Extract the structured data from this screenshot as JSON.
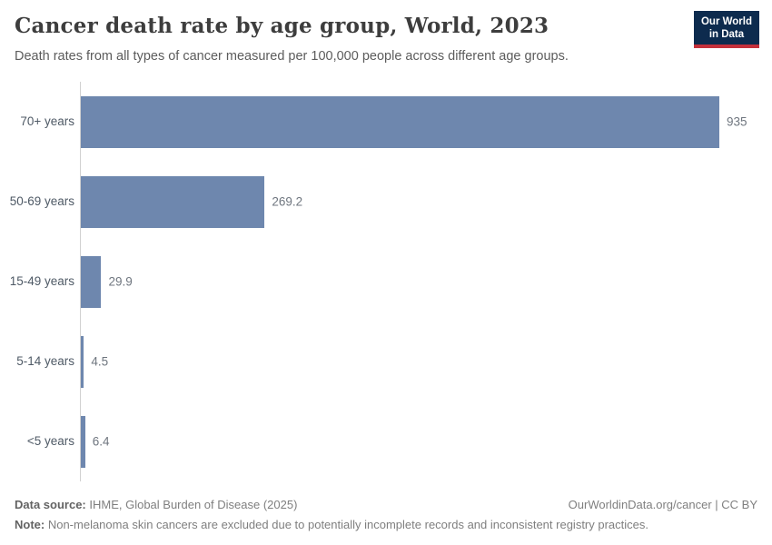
{
  "header": {
    "title": "Cancer death rate by age group, World, 2023",
    "subtitle": "Death rates from all types of cancer measured per 100,000 people across different age groups.",
    "logo": {
      "line1": "Our World",
      "line2": "in Data"
    }
  },
  "chart_data": {
    "type": "bar",
    "orientation": "horizontal",
    "title": "Cancer death rate by age group, World, 2023",
    "categories": [
      "70+ years",
      "50-69 years",
      "15-49 years",
      "5-14 years",
      "<5 years"
    ],
    "values": [
      935,
      269.2,
      29.9,
      4.5,
      6.4
    ],
    "value_labels": [
      "935",
      "269.2",
      "29.9",
      "4.5",
      "6.4"
    ],
    "xlabel": "",
    "ylabel": "",
    "xlim": [
      0,
      935
    ],
    "grid": false,
    "legend": "none",
    "bar_color": "#6e87ae",
    "axis_color": "#d1d1d1"
  },
  "footer": {
    "datasource_label": "Data source:",
    "datasource_text": " IHME, Global Burden of Disease (2025)",
    "rights": "OurWorldinData.org/cancer | CC BY",
    "note_label": "Note:",
    "note_text": " Non-melanoma skin cancers are excluded due to potentially incomplete records and inconsistent registry practices."
  },
  "colors": {
    "bar": "#6e87ae",
    "logo_navy": "#0d2b4e",
    "logo_red": "#c4303b",
    "title_text": "#3d3d3d",
    "subtitle_text": "#5c5c5c",
    "axis_line": "#d1d1d1"
  }
}
